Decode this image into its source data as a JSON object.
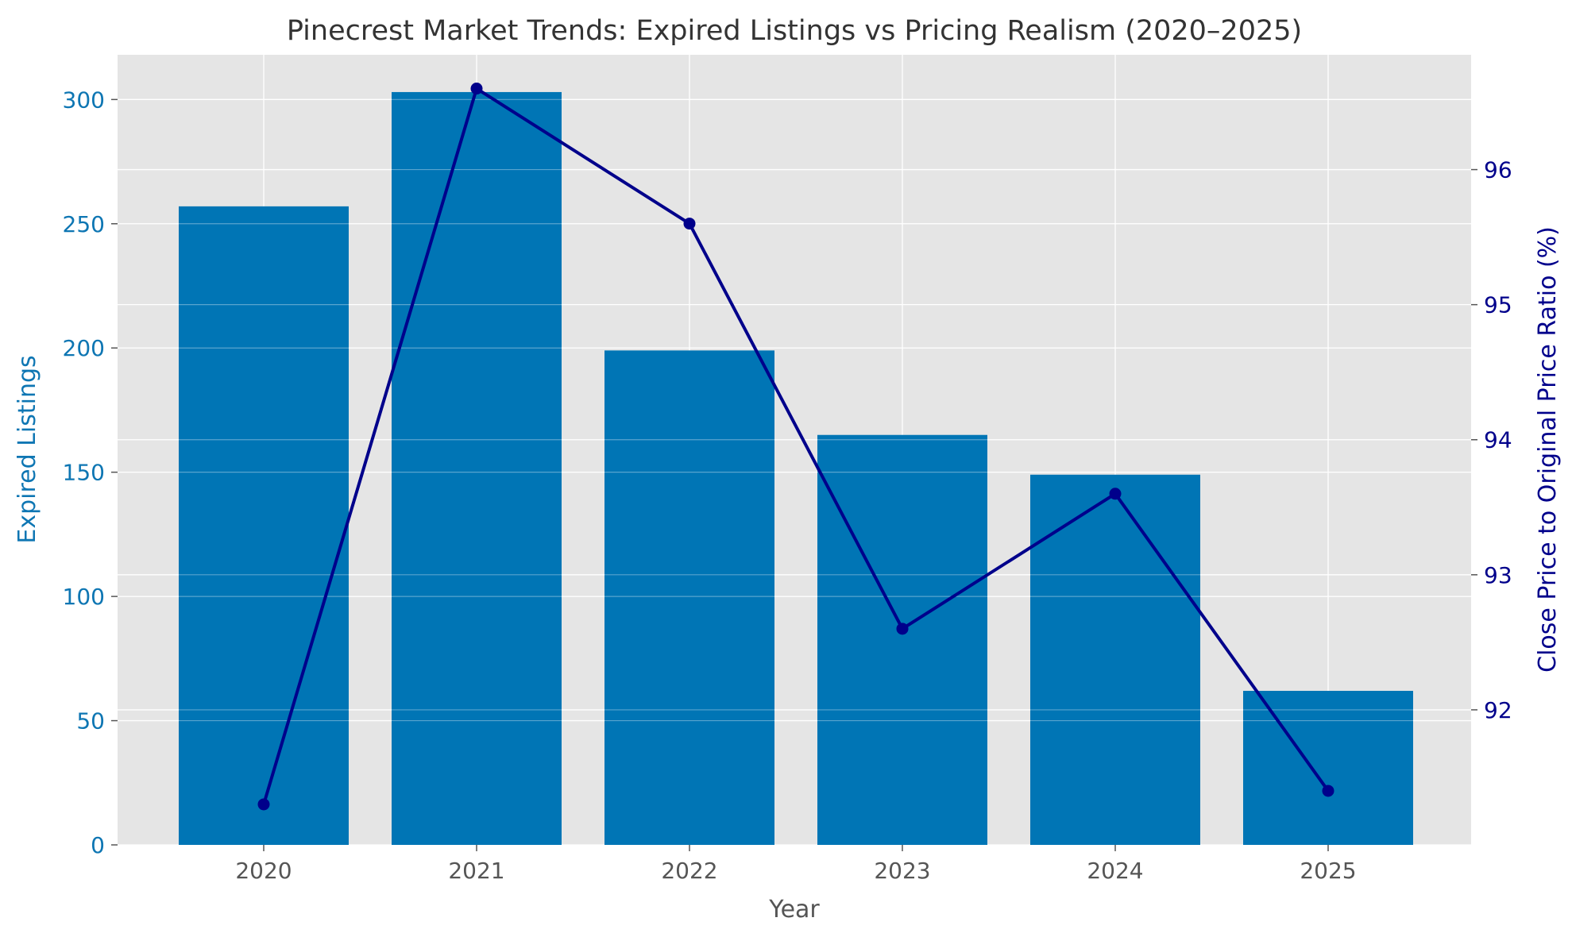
{
  "chart_data": {
    "type": "bar",
    "title": "Pinecrest Market Trends: Expired Listings vs Pricing Realism (2020–2025)",
    "xlabel": "Year",
    "ylabel": "Expired Listings",
    "y2label": "Close Price to Original Price Ratio (%)",
    "categories": [
      "2020",
      "2021",
      "2022",
      "2023",
      "2024",
      "2025"
    ],
    "series": [
      {
        "name": "Expired Listings",
        "type": "bar",
        "axis": "left",
        "color": "#0075b5",
        "values": [
          257,
          303,
          199,
          165,
          149,
          62
        ]
      },
      {
        "name": "Close Price to Original Price Ratio (%)",
        "type": "line",
        "axis": "right",
        "color": "#00008b",
        "values": [
          91.3,
          96.6,
          95.6,
          92.6,
          93.6,
          91.4
        ]
      }
    ],
    "ylim": [
      0,
      318
    ],
    "y2lim": [
      91.0,
      96.85
    ],
    "yticks": [
      0,
      50,
      100,
      150,
      200,
      250,
      300
    ],
    "y2ticks": [
      92,
      93,
      94,
      95,
      96
    ],
    "grid": true
  },
  "colors": {
    "plot_bg": "#e5e5e5",
    "grid": "#ffffff",
    "bar": "#0075b5",
    "line": "#00008b",
    "left_axis": "#0e76b3",
    "right_axis": "#00008b"
  }
}
